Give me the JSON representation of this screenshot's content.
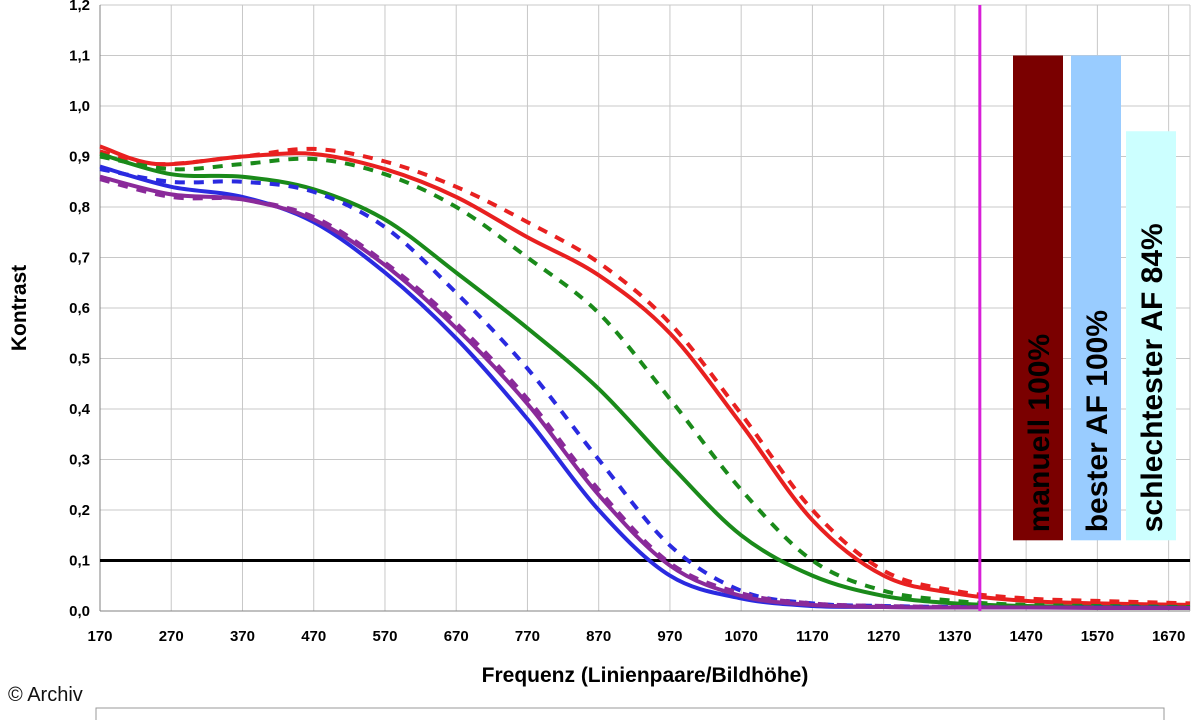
{
  "credit": "© Archiv",
  "chart_data": {
    "type": "line",
    "xlabel": "Frequenz (Linienpaare/Bildhöhe)",
    "ylabel": "Kontrast",
    "xlim": [
      170,
      1700
    ],
    "ylim": [
      0,
      1.2
    ],
    "x_ticks": [
      170,
      270,
      370,
      470,
      570,
      670,
      770,
      870,
      970,
      1070,
      1170,
      1270,
      1370,
      1470,
      1570,
      1670
    ],
    "y_ticks": [
      "0,0",
      "0,1",
      "0,2",
      "0,3",
      "0,4",
      "0,5",
      "0,6",
      "0,7",
      "0,8",
      "0,9",
      "1,0",
      "1,1",
      "1,2"
    ],
    "y_tick_values": [
      0,
      0.1,
      0.2,
      0.3,
      0.4,
      0.5,
      0.6,
      0.7,
      0.8,
      0.9,
      1.0,
      1.1,
      1.2
    ],
    "grid": true,
    "reference_line": {
      "y": 0.1,
      "color": "#000000"
    },
    "marker_line": {
      "x": 1405,
      "color": "#d81fd8"
    },
    "series": [
      {
        "color": "#e82020",
        "style": "solid",
        "x": [
          170,
          250,
          370,
          470,
          570,
          670,
          770,
          870,
          970,
          1070,
          1170,
          1270,
          1370,
          1470,
          1570,
          1700
        ],
        "values": [
          0.92,
          0.885,
          0.9,
          0.905,
          0.875,
          0.82,
          0.74,
          0.665,
          0.55,
          0.37,
          0.18,
          0.07,
          0.035,
          0.02,
          0.015,
          0.012
        ]
      },
      {
        "color": "#e82020",
        "style": "dashed",
        "x": [
          170,
          250,
          370,
          470,
          570,
          670,
          770,
          870,
          970,
          1070,
          1170,
          1270,
          1370,
          1470,
          1570,
          1700
        ],
        "values": [
          0.91,
          0.885,
          0.9,
          0.915,
          0.89,
          0.84,
          0.77,
          0.69,
          0.57,
          0.39,
          0.2,
          0.08,
          0.04,
          0.025,
          0.02,
          0.015
        ]
      },
      {
        "color": "#1a8a1a",
        "style": "solid",
        "x": [
          170,
          270,
          370,
          470,
          570,
          670,
          770,
          870,
          970,
          1070,
          1170,
          1270,
          1370,
          1470,
          1570,
          1700
        ],
        "values": [
          0.905,
          0.865,
          0.86,
          0.835,
          0.775,
          0.67,
          0.56,
          0.44,
          0.29,
          0.15,
          0.07,
          0.03,
          0.015,
          0.01,
          0.008,
          0.007
        ]
      },
      {
        "color": "#1a8a1a",
        "style": "dashed",
        "x": [
          170,
          270,
          370,
          470,
          570,
          670,
          770,
          870,
          970,
          1070,
          1170,
          1270,
          1370,
          1470,
          1570,
          1700
        ],
        "values": [
          0.9,
          0.875,
          0.885,
          0.895,
          0.865,
          0.8,
          0.7,
          0.59,
          0.42,
          0.24,
          0.1,
          0.04,
          0.02,
          0.012,
          0.01,
          0.008
        ]
      },
      {
        "color": "#2a2ae0",
        "style": "solid",
        "x": [
          170,
          270,
          370,
          470,
          570,
          670,
          770,
          870,
          970,
          1070,
          1170,
          1270,
          1370,
          1470,
          1570,
          1700
        ],
        "values": [
          0.88,
          0.84,
          0.82,
          0.77,
          0.67,
          0.54,
          0.38,
          0.2,
          0.07,
          0.025,
          0.01,
          0.008,
          0.007,
          0.007,
          0.007,
          0.006
        ]
      },
      {
        "color": "#2a2ae0",
        "style": "dashed",
        "x": [
          170,
          270,
          370,
          470,
          570,
          670,
          770,
          870,
          970,
          1070,
          1170,
          1270,
          1370,
          1470,
          1570,
          1700
        ],
        "values": [
          0.875,
          0.85,
          0.85,
          0.83,
          0.76,
          0.63,
          0.48,
          0.3,
          0.13,
          0.04,
          0.015,
          0.01,
          0.008,
          0.007,
          0.007,
          0.006
        ]
      },
      {
        "color": "#8a2a9a",
        "style": "solid",
        "x": [
          170,
          270,
          370,
          470,
          570,
          670,
          770,
          870,
          970,
          1070,
          1170,
          1270,
          1370,
          1470,
          1570,
          1700
        ],
        "values": [
          0.86,
          0.825,
          0.815,
          0.775,
          0.685,
          0.56,
          0.41,
          0.23,
          0.09,
          0.03,
          0.012,
          0.008,
          0.007,
          0.007,
          0.006,
          0.006
        ]
      },
      {
        "color": "#8a2a9a",
        "style": "dashed",
        "x": [
          170,
          270,
          370,
          470,
          570,
          670,
          770,
          870,
          970,
          1070,
          1170,
          1270,
          1370,
          1470,
          1570,
          1700
        ],
        "values": [
          0.855,
          0.82,
          0.815,
          0.78,
          0.69,
          0.57,
          0.42,
          0.24,
          0.095,
          0.035,
          0.015,
          0.01,
          0.008,
          0.007,
          0.007,
          0.006
        ]
      }
    ],
    "bars": [
      {
        "label": "manuell 100%",
        "value": 1.1,
        "color": "#7a0000"
      },
      {
        "label": "bester AF 100%",
        "value": 1.1,
        "color": "#99ccff"
      },
      {
        "label": "schlechtester AF 84%",
        "value": 0.95,
        "color": "#ccffff"
      }
    ]
  }
}
